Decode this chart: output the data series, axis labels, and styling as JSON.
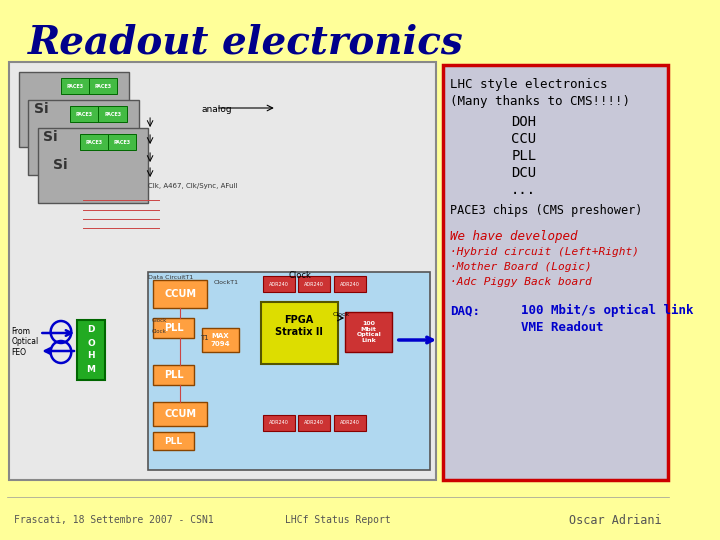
{
  "title": "Readout electronics",
  "title_color": "#00008B",
  "slide_bg": "#FFFF99",
  "footer_left": "Frascati, 18 Settembre 2007 - CSN1",
  "footer_center": "LHCf Status Report",
  "footer_right": "Oscar Adriani",
  "info_box_bg": "#C8C8D8",
  "info_box_border": "#CC0000",
  "info_line1": "LHC style electronics",
  "info_line2": "(Many thanks to CMS!!!!)",
  "info_items": [
    "DOH",
    "CCU",
    "PLL",
    "DCU",
    "..."
  ],
  "info_line3": "PACE3 chips (CMS preshower)",
  "we_have": "We have developed",
  "bullets": [
    "·Hybrid circuit (Left+Right)",
    "·Mother Board (Logic)",
    "·Adc Piggy Back board"
  ],
  "daq_label": "DAQ:",
  "daq_items": [
    "100 Mbit/s optical link",
    "VME Readout"
  ],
  "red_color": "#CC0000",
  "blue_color": "#0000CC",
  "black_color": "#000000",
  "orange_color": "#FFA040",
  "orange_edge": "#884400",
  "green_color": "#22AA22",
  "green_edge": "#006600",
  "chip_green": "#44BB44",
  "red_box_color": "#CC3333",
  "red_box_edge": "#880000",
  "yellow_color": "#DDDD00",
  "light_blue": "#B0D8F0",
  "diagram_bg": "#E8E8E8"
}
